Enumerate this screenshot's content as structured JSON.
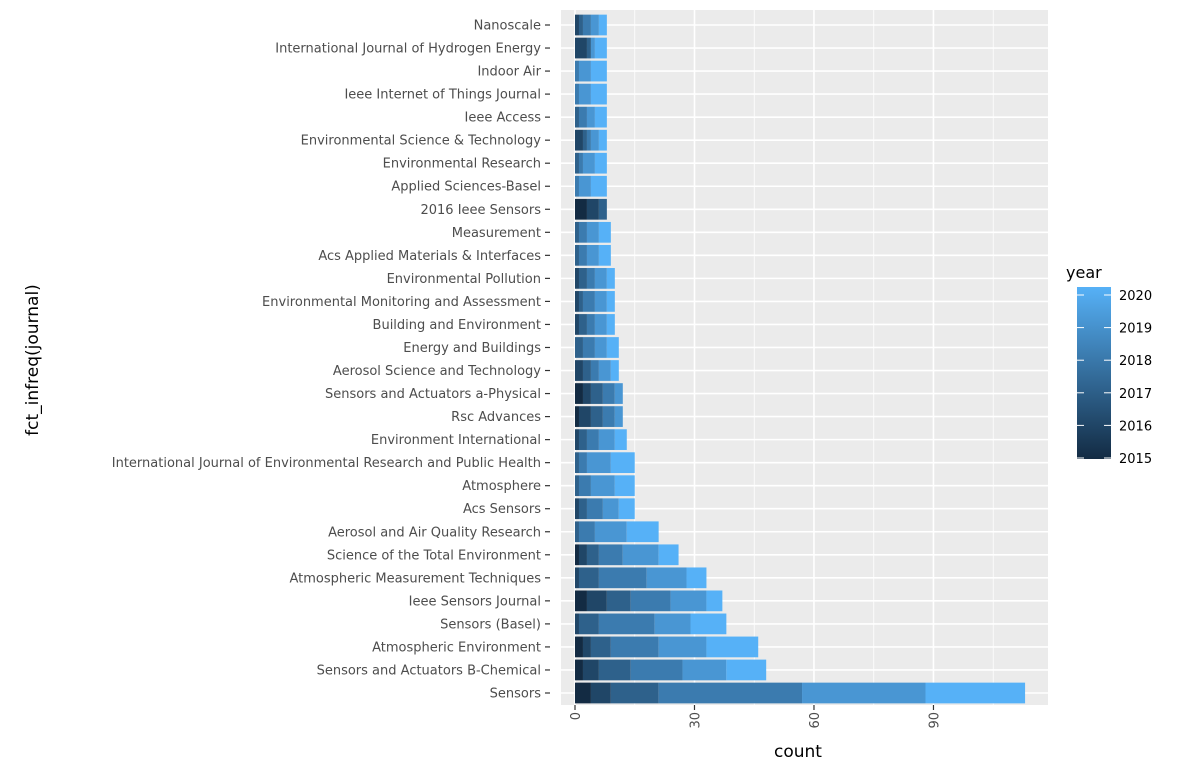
{
  "chart_data": {
    "type": "bar",
    "orientation": "horizontal",
    "stacked": true,
    "title": "",
    "xlabel": "count",
    "ylabel": "fct_infreq(journal)",
    "xlim": [
      0,
      115
    ],
    "x_ticks": [
      0,
      30,
      60,
      90
    ],
    "grid": true,
    "categories": [
      "Nanoscale",
      "International Journal of Hydrogen Energy",
      "Indoor Air",
      "Ieee Internet of Things Journal",
      "Ieee Access",
      "Environmental Science & Technology",
      "Environmental Research",
      "Applied Sciences-Basel",
      "2016 Ieee Sensors",
      "Measurement",
      "Acs Applied Materials & Interfaces",
      "Environmental Pollution",
      "Environmental Monitoring and Assessment",
      "Building and Environment",
      "Energy and Buildings",
      "Aerosol Science and Technology",
      "Sensors and Actuators a-Physical",
      "Rsc Advances",
      "Environment International",
      "International Journal of Environmental Research and Public Health",
      "Atmosphere",
      "Acs Sensors",
      "Aerosol and Air Quality Research",
      "Science of the Total Environment",
      "Atmospheric Measurement Techniques",
      "Ieee Sensors Journal",
      "Sensors (Basel)",
      "Atmospheric Environment",
      "Sensors and Actuators B-Chemical",
      "Sensors"
    ],
    "totals": [
      8,
      8,
      8,
      8,
      8,
      8,
      8,
      8,
      8,
      9,
      9,
      10,
      10,
      10,
      11,
      11,
      12,
      12,
      13,
      15,
      15,
      15,
      21,
      26,
      33,
      37,
      38,
      46,
      48,
      113
    ],
    "series": [
      {
        "year": 2015,
        "values": [
          0,
          0,
          0,
          0,
          0,
          0,
          0,
          0,
          3,
          0,
          0,
          0,
          0,
          0,
          0,
          0,
          2,
          1,
          0,
          0,
          0,
          0,
          0,
          1,
          0,
          3,
          0,
          2,
          2,
          4
        ]
      },
      {
        "year": 2016,
        "values": [
          1,
          3,
          0,
          0,
          0,
          2,
          0,
          0,
          3,
          0,
          0,
          1,
          1,
          1,
          0,
          2,
          2,
          3,
          1,
          0,
          0,
          1,
          0,
          2,
          1,
          5,
          1,
          2,
          4,
          5
        ]
      },
      {
        "year": 2017,
        "values": [
          1,
          1,
          0,
          0,
          1,
          1,
          1,
          0,
          2,
          1,
          1,
          2,
          1,
          2,
          2,
          2,
          3,
          3,
          2,
          1,
          1,
          2,
          1,
          3,
          5,
          6,
          5,
          5,
          8,
          12
        ]
      },
      {
        "year": 2018,
        "values": [
          2,
          0,
          1,
          1,
          2,
          1,
          1,
          1,
          0,
          2,
          2,
          2,
          3,
          2,
          3,
          2,
          3,
          3,
          3,
          2,
          3,
          4,
          4,
          6,
          12,
          10,
          14,
          12,
          13,
          36
        ]
      },
      {
        "year": 2019,
        "values": [
          2,
          1,
          3,
          3,
          2,
          2,
          3,
          3,
          0,
          3,
          3,
          3,
          3,
          3,
          3,
          3,
          2,
          2,
          4,
          6,
          6,
          4,
          8,
          9,
          10,
          9,
          9,
          12,
          11,
          31
        ]
      },
      {
        "year": 2020,
        "values": [
          2,
          3,
          4,
          4,
          3,
          2,
          3,
          4,
          0,
          3,
          3,
          2,
          2,
          2,
          3,
          2,
          0,
          0,
          3,
          6,
          5,
          4,
          8,
          5,
          5,
          4,
          9,
          13,
          10,
          25
        ]
      }
    ],
    "legend": {
      "title": "year",
      "labels": [
        "2020",
        "2019",
        "2018",
        "2017",
        "2016",
        "2015"
      ],
      "placement": "right",
      "color_low": "#132b43",
      "color_high": "#56b1f7"
    },
    "panel_background": "#ebebeb",
    "grid_color": "#ffffff"
  }
}
